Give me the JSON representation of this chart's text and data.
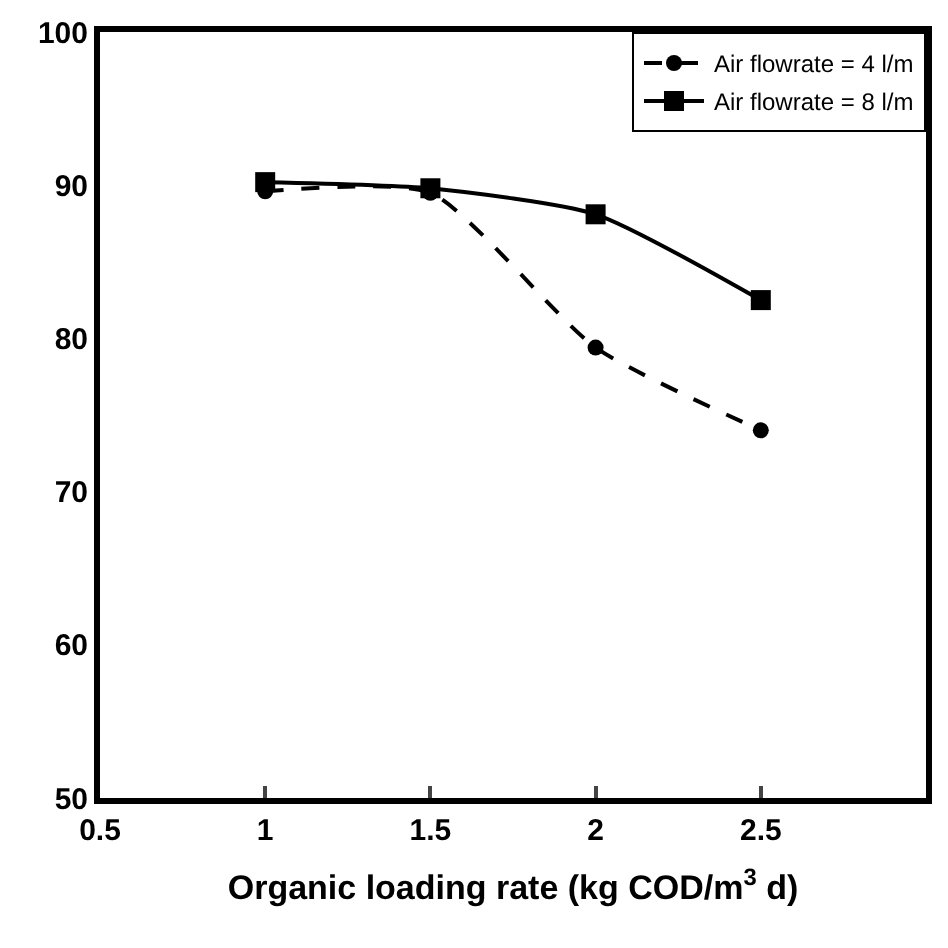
{
  "chart_data": {
    "type": "line",
    "xlabel": "Organic loading rate (kg COD/m$^{3}$ d)",
    "x": [
      1,
      1.5,
      2,
      2.5
    ],
    "series": [
      {
        "name": "Air flowrate = 4 l/m",
        "color": "#000000",
        "values": [
          89.6,
          89.5,
          79.4,
          74.0
        ],
        "marker": "circle",
        "line_style": "dashed"
      },
      {
        "name": "Air flowrate = 8 l/m",
        "color": "#000000",
        "values": [
          90.2,
          89.8,
          88.1,
          82.5
        ],
        "marker": "square",
        "line_style": "solid"
      }
    ],
    "xlim": [
      0.5,
      3
    ],
    "xticks": [
      0.5,
      1,
      1.5,
      2,
      2.5
    ],
    "ylim": [
      50,
      100
    ],
    "yticks": [
      50,
      60,
      70,
      80,
      90,
      100
    ],
    "legend": "top right"
  }
}
